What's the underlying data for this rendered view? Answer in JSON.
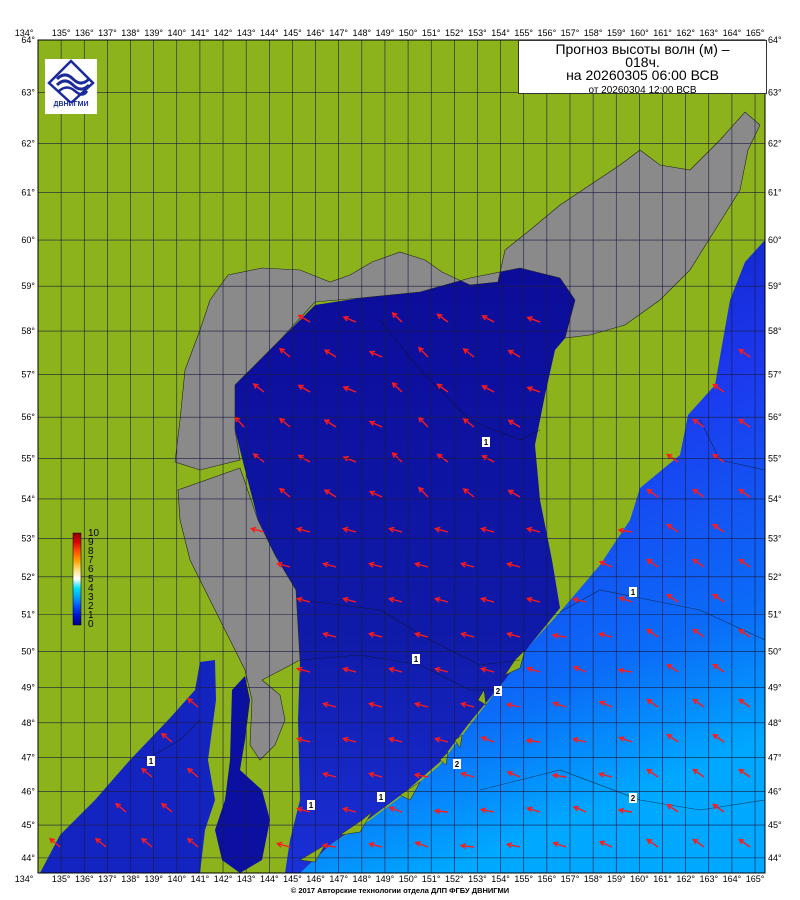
{
  "title": {
    "line1": "Прогноз высоты волн (м) –",
    "line2": "018ч.",
    "line3": "на 20260305 06:00 ВСВ",
    "line4": "от 20260304 12:00 ВСВ"
  },
  "logo": {
    "text": "ДВНИГМИ",
    "icon": "dvnigmi-wave-diamond-logo"
  },
  "axes": {
    "longitudes": [
      "134°",
      "135°",
      "136°",
      "137°",
      "138°",
      "139°",
      "140°",
      "141°",
      "142°",
      "143°",
      "144°",
      "145°",
      "146°",
      "147°",
      "148°",
      "149°",
      "150°",
      "151°",
      "152°",
      "153°",
      "154°",
      "155°",
      "156°",
      "157°",
      "158°",
      "159°",
      "160°",
      "161°",
      "162°",
      "163°",
      "164°",
      "165°"
    ],
    "latitudes": [
      "64°",
      "63°",
      "62°",
      "61°",
      "60°",
      "59°",
      "58°",
      "57°",
      "56°",
      "55°",
      "54°",
      "53°",
      "52°",
      "51°",
      "50°",
      "49°",
      "48°",
      "47°",
      "46°",
      "45°",
      "44°"
    ]
  },
  "colorbar": {
    "labels": [
      "10",
      "9",
      "8",
      "7",
      "6",
      "5",
      "4",
      "3",
      "2",
      "1",
      "0"
    ],
    "colors": [
      "#8b0000",
      "#e00000",
      "#ff5000",
      "#ffa000",
      "#ffe080",
      "#ffffff",
      "#00e0ff",
      "#00a0ff",
      "#0050ff",
      "#0010d0",
      "#00008b"
    ]
  },
  "contour_labels": [
    "1",
    "1",
    "1",
    "1",
    "1",
    "1",
    "2",
    "2",
    "2"
  ],
  "colors": {
    "land": "#8db31c",
    "masked_land": "#8a8a8a",
    "sea_low": "#0a0a96",
    "sea_mid": "#1c2ee6",
    "sea_high": "#00a0ff",
    "arrow": "#ff1a1a",
    "grid": "#1a1a40"
  },
  "footer": "© 2017 Авторские технологии отдела ДЛП ФГБУ ДВНИГМИ"
}
